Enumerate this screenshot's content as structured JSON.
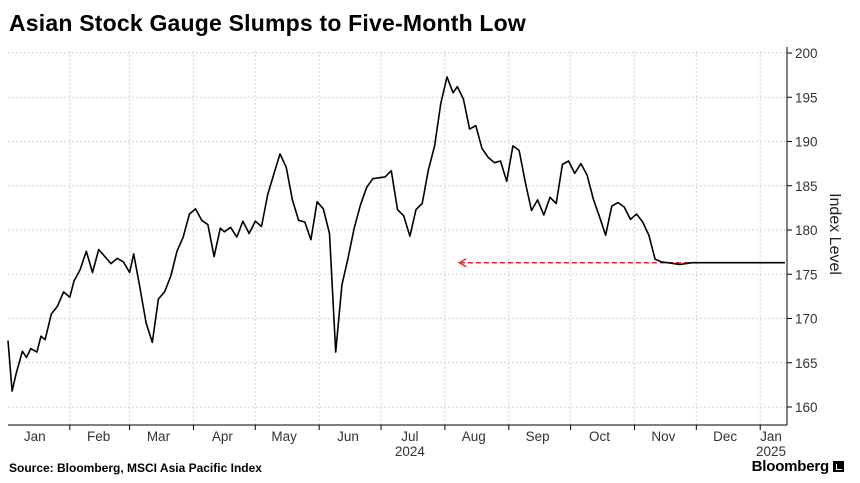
{
  "title": "Asian Stock Gauge Slumps to Five-Month Low",
  "source": "Source: Bloomberg, MSCI Asia Pacific Index",
  "brand": "Bloomberg",
  "chart_data": {
    "type": "line",
    "ylabel": "Index Level",
    "ylim": [
      160,
      200
    ],
    "xlim": [
      "2024-01-02",
      "2025-01-14"
    ],
    "y_ticks": [
      160,
      165,
      170,
      175,
      180,
      185,
      190,
      195,
      200
    ],
    "y_axis_side": "right",
    "grid": true,
    "x_tick_labels": [
      {
        "label": "Jan",
        "date": "2024-01-15"
      },
      {
        "label": "Feb",
        "date": "2024-02-15"
      },
      {
        "label": "Mar",
        "date": "2024-03-15"
      },
      {
        "label": "Apr",
        "date": "2024-04-15"
      },
      {
        "label": "May",
        "date": "2024-05-15"
      },
      {
        "label": "Jun",
        "date": "2024-06-15"
      },
      {
        "label": "Jul",
        "date": "2024-07-15"
      },
      {
        "label": "Aug",
        "date": "2024-08-15"
      },
      {
        "label": "Sep",
        "date": "2024-09-15"
      },
      {
        "label": "Oct",
        "date": "2024-10-15"
      },
      {
        "label": "Nov",
        "date": "2024-11-15"
      },
      {
        "label": "Dec",
        "date": "2024-12-15"
      },
      {
        "label": "Jan",
        "date": "2025-01-15"
      }
    ],
    "year_labels": [
      {
        "label": "2024",
        "date": "2024-07-15"
      },
      {
        "label": "2025",
        "date": "2025-01-15"
      }
    ],
    "colors": {
      "line": "#000000",
      "annotation": "#e3262e",
      "grid": "#c8c8c8"
    },
    "series": [
      {
        "x": [
          "2024-01-02",
          "2024-01-04",
          "2024-01-06",
          "2024-01-09",
          "2024-01-11",
          "2024-01-13",
          "2024-01-16",
          "2024-01-18",
          "2024-01-20",
          "2024-01-23",
          "2024-01-26",
          "2024-01-29",
          "2024-02-01",
          "2024-02-03",
          "2024-02-06",
          "2024-02-09",
          "2024-02-12",
          "2024-02-15",
          "2024-02-18",
          "2024-02-21",
          "2024-02-24",
          "2024-02-27",
          "2024-03-01",
          "2024-03-03",
          "2024-03-06",
          "2024-03-09",
          "2024-03-12",
          "2024-03-15",
          "2024-03-18",
          "2024-03-21",
          "2024-03-24",
          "2024-03-27",
          "2024-03-30",
          "2024-04-02",
          "2024-04-05",
          "2024-04-08",
          "2024-04-11",
          "2024-04-14",
          "2024-04-16",
          "2024-04-19",
          "2024-04-22",
          "2024-04-25",
          "2024-04-28",
          "2024-05-01",
          "2024-05-04",
          "2024-05-07",
          "2024-05-10",
          "2024-05-13",
          "2024-05-16",
          "2024-05-19",
          "2024-05-22",
          "2024-05-25",
          "2024-05-28",
          "2024-05-31",
          "2024-06-03",
          "2024-06-06",
          "2024-06-09",
          "2024-06-12",
          "2024-06-15",
          "2024-06-18",
          "2024-06-21",
          "2024-06-24",
          "2024-06-27",
          "2024-06-30",
          "2024-07-03",
          "2024-07-06",
          "2024-07-09",
          "2024-07-12",
          "2024-07-15",
          "2024-07-18",
          "2024-07-21",
          "2024-07-24",
          "2024-07-27",
          "2024-07-30",
          "2024-08-02",
          "2024-08-05",
          "2024-08-07",
          "2024-08-10",
          "2024-08-13",
          "2024-08-16",
          "2024-08-19",
          "2024-08-22",
          "2024-08-25",
          "2024-08-28",
          "2024-08-31",
          "2024-09-03",
          "2024-09-06",
          "2024-09-09",
          "2024-09-12",
          "2024-09-15",
          "2024-09-18",
          "2024-09-21",
          "2024-09-24",
          "2024-09-27",
          "2024-09-30",
          "2024-10-03",
          "2024-10-06",
          "2024-10-09",
          "2024-10-12",
          "2024-10-15",
          "2024-10-18",
          "2024-10-21",
          "2024-10-24",
          "2024-10-27",
          "2024-10-30",
          "2024-11-02",
          "2024-11-05",
          "2024-11-08",
          "2024-11-11",
          "2024-11-14",
          "2024-11-17",
          "2024-11-20",
          "2024-11-23",
          "2024-11-26",
          "2024-11-29",
          "2024-12-02",
          "2024-12-05",
          "2024-12-08",
          "2024-12-11",
          "2024-12-14",
          "2024-12-17",
          "2024-12-20",
          "2024-12-23",
          "2024-12-26",
          "2024-12-29",
          "2025-01-01",
          "2025-01-04",
          "2025-01-07",
          "2025-01-10",
          "2025-01-13"
        ],
        "y": [
          167.5,
          161.8,
          163.8,
          166.3,
          165.6,
          166.6,
          166.2,
          168.0,
          167.6,
          170.5,
          171.4,
          173.0,
          172.4,
          174.2,
          175.5,
          177.6,
          175.2,
          177.8,
          177.0,
          176.2,
          176.8,
          176.4,
          175.2,
          177.3,
          173.5,
          169.5,
          167.3,
          172.2,
          173.0,
          174.8,
          177.6,
          179.2,
          181.8,
          182.4,
          181.1,
          180.6,
          177.0,
          180.2,
          179.8,
          180.3,
          179.2,
          181.0,
          179.6,
          181.0,
          180.4,
          184.0,
          186.3,
          188.6,
          187.1,
          183.4,
          181.1,
          180.9,
          178.9,
          183.2,
          182.4,
          179.6,
          166.2,
          173.8,
          176.8,
          180.2,
          182.8,
          184.8,
          185.8,
          185.9,
          186.0,
          186.7,
          182.3,
          181.6,
          179.3,
          182.3,
          183.0,
          186.8,
          189.5,
          194.3,
          197.3,
          195.5,
          196.2,
          194.8,
          191.4,
          191.8,
          189.2,
          188.2,
          187.6,
          187.8,
          185.5,
          189.5,
          189.0,
          185.4,
          182.2,
          183.4,
          181.7,
          183.7,
          183.0,
          187.4,
          187.8,
          186.4,
          187.5,
          186.2,
          183.5,
          181.5,
          179.4,
          182.7,
          183.1,
          182.6,
          181.2,
          181.8,
          180.9,
          179.4,
          176.7,
          176.4,
          176.3,
          176.2,
          176.1,
          176.2,
          176.3,
          176.3,
          176.3,
          176.3,
          176.3,
          176.3,
          176.3,
          176.3,
          176.3,
          176.3,
          176.3,
          176.3,
          176.3,
          176.3,
          176.3,
          176.3
        ]
      }
    ],
    "annotations": [
      {
        "type": "dashed-arrow",
        "y": 176.3,
        "from_date": "2025-01-13",
        "to_date": "2024-08-08"
      }
    ]
  }
}
